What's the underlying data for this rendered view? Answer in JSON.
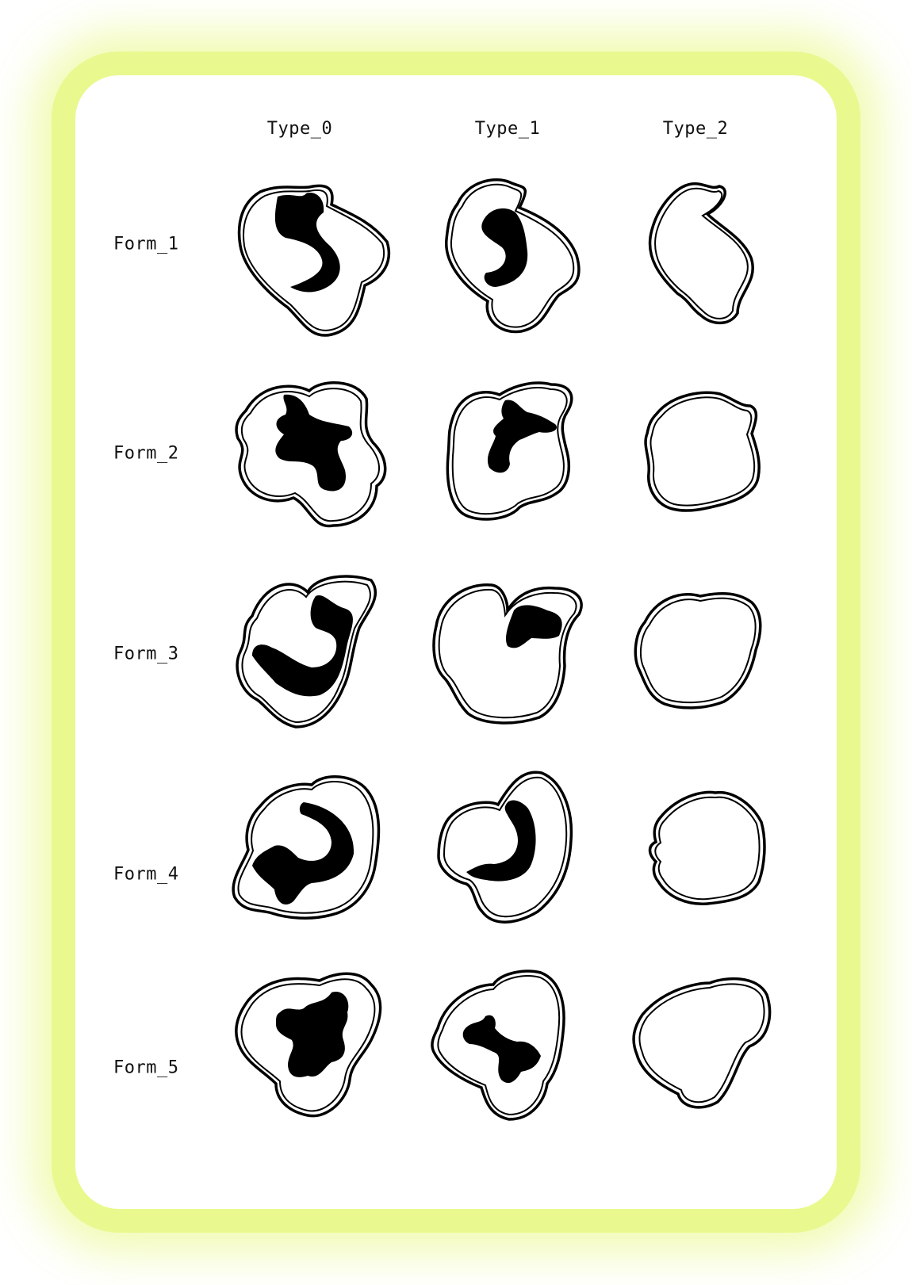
{
  "columns": [
    "Type_0",
    "Type_1",
    "Type_2"
  ],
  "rows": [
    "Form_1",
    "Form_2",
    "Form_3",
    "Form_4",
    "Form_5"
  ],
  "colors": {
    "frame_glow": "#e8f98c",
    "ink": "#000000",
    "paper": "#ffffff"
  }
}
